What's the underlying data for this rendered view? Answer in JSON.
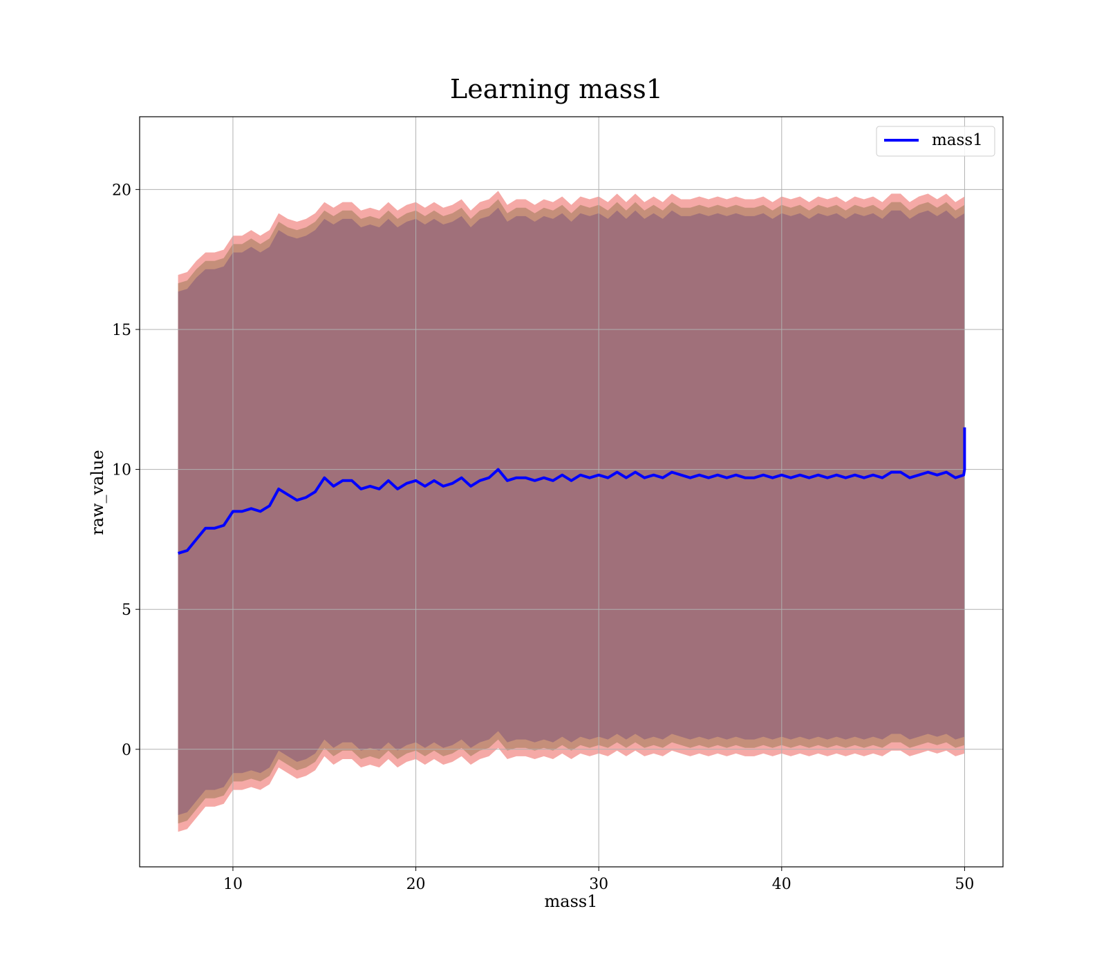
{
  "chart_data": {
    "type": "line",
    "title": "Learning mass1",
    "xlabel": "mass1",
    "ylabel": "raw_value",
    "xlim": [
      4.9,
      52.1
    ],
    "ylim": [
      -4.2,
      22.6
    ],
    "xticks": [
      10,
      20,
      30,
      40,
      50
    ],
    "yticks": [
      0,
      5,
      10,
      15,
      20
    ],
    "grid": true,
    "legend": {
      "position": "top-right",
      "entries": [
        "mass1"
      ]
    },
    "colors": {
      "line": "#0000ff",
      "band_outer": "#f4a09c",
      "band_mid": "#c58f7a",
      "band_inner": "#a0707a",
      "grid": "#b0b0b0"
    },
    "series": [
      {
        "name": "mass1",
        "x": [
          7.0,
          7.5,
          8.0,
          8.5,
          9.0,
          9.5,
          10.0,
          10.5,
          11.0,
          11.5,
          12.0,
          12.5,
          13.0,
          13.5,
          14.0,
          14.5,
          15.0,
          15.5,
          16.0,
          16.5,
          17.0,
          17.5,
          18.0,
          18.5,
          19.0,
          19.5,
          20.0,
          20.5,
          21.0,
          21.5,
          22.0,
          22.5,
          23.0,
          23.5,
          24.0,
          24.5,
          25.0,
          25.5,
          26.0,
          26.5,
          27.0,
          27.5,
          28.0,
          28.5,
          29.0,
          29.5,
          30.0,
          30.5,
          31.0,
          31.5,
          32.0,
          32.5,
          33.0,
          33.5,
          34.0,
          34.5,
          35.0,
          35.5,
          36.0,
          36.5,
          37.0,
          37.5,
          38.0,
          38.5,
          39.0,
          39.5,
          40.0,
          40.5,
          41.0,
          41.5,
          42.0,
          42.5,
          43.0,
          43.5,
          44.0,
          44.5,
          45.0,
          45.5,
          46.0,
          46.5,
          47.0,
          47.5,
          48.0,
          48.5,
          49.0,
          49.5,
          49.95,
          50.0,
          50.0
        ],
        "y": [
          7.0,
          7.1,
          7.5,
          7.9,
          7.9,
          8.0,
          8.5,
          8.5,
          8.6,
          8.5,
          8.7,
          9.3,
          9.1,
          8.9,
          9.0,
          9.2,
          9.7,
          9.4,
          9.6,
          9.6,
          9.3,
          9.4,
          9.3,
          9.6,
          9.3,
          9.5,
          9.6,
          9.4,
          9.6,
          9.4,
          9.5,
          9.7,
          9.4,
          9.6,
          9.7,
          10.0,
          9.6,
          9.7,
          9.7,
          9.6,
          9.7,
          9.6,
          9.8,
          9.6,
          9.8,
          9.7,
          9.8,
          9.7,
          9.9,
          9.7,
          9.9,
          9.7,
          9.8,
          9.7,
          9.9,
          9.8,
          9.7,
          9.8,
          9.7,
          9.8,
          9.7,
          9.8,
          9.7,
          9.7,
          9.8,
          9.7,
          9.8,
          9.7,
          9.8,
          9.7,
          9.8,
          9.7,
          9.8,
          9.7,
          9.8,
          9.7,
          9.8,
          9.7,
          9.9,
          9.9,
          9.7,
          9.8,
          9.9,
          9.8,
          9.9,
          9.7,
          9.8,
          10.0,
          11.5
        ]
      }
    ],
    "band": {
      "x": [
        7.0,
        7.5,
        8.0,
        8.5,
        9.0,
        9.5,
        10.0,
        10.5,
        11.0,
        11.5,
        12.0,
        12.5,
        13.0,
        13.5,
        14.0,
        14.5,
        15.0,
        15.5,
        16.0,
        16.5,
        17.0,
        17.5,
        18.0,
        18.5,
        19.0,
        19.5,
        20.0,
        20.5,
        21.0,
        21.5,
        22.0,
        22.5,
        23.0,
        23.5,
        24.0,
        24.5,
        25.0,
        25.5,
        26.0,
        26.5,
        27.0,
        27.5,
        28.0,
        28.5,
        29.0,
        29.5,
        30.0,
        30.5,
        31.0,
        31.5,
        32.0,
        32.5,
        33.0,
        33.5,
        34.0,
        34.5,
        35.0,
        35.5,
        36.0,
        36.5,
        37.0,
        37.5,
        38.0,
        38.5,
        39.0,
        39.5,
        40.0,
        40.5,
        41.0,
        41.5,
        42.0,
        42.5,
        43.0,
        43.5,
        44.0,
        44.5,
        45.0,
        45.5,
        46.0,
        46.5,
        47.0,
        47.5,
        48.0,
        48.5,
        49.0,
        49.5,
        50.0
      ],
      "upper": [
        16.8,
        16.9,
        17.3,
        17.6,
        17.6,
        17.7,
        18.2,
        18.2,
        18.4,
        18.2,
        18.4,
        19.0,
        18.8,
        18.7,
        18.8,
        19.0,
        19.4,
        19.2,
        19.4,
        19.4,
        19.1,
        19.2,
        19.1,
        19.4,
        19.1,
        19.3,
        19.4,
        19.2,
        19.4,
        19.2,
        19.3,
        19.5,
        19.1,
        19.4,
        19.5,
        19.8,
        19.3,
        19.5,
        19.5,
        19.3,
        19.5,
        19.4,
        19.6,
        19.3,
        19.6,
        19.5,
        19.6,
        19.4,
        19.7,
        19.4,
        19.7,
        19.4,
        19.6,
        19.4,
        19.7,
        19.5,
        19.5,
        19.6,
        19.5,
        19.6,
        19.5,
        19.6,
        19.5,
        19.5,
        19.6,
        19.4,
        19.6,
        19.5,
        19.6,
        19.4,
        19.6,
        19.5,
        19.6,
        19.4,
        19.6,
        19.5,
        19.6,
        19.4,
        19.7,
        19.7,
        19.4,
        19.6,
        19.7,
        19.5,
        19.7,
        19.4,
        19.6
      ],
      "lower": [
        -2.8,
        -2.7,
        -2.3,
        -1.9,
        -1.9,
        -1.8,
        -1.3,
        -1.3,
        -1.2,
        -1.3,
        -1.1,
        -0.5,
        -0.7,
        -0.9,
        -0.8,
        -0.6,
        -0.1,
        -0.4,
        -0.2,
        -0.2,
        -0.5,
        -0.4,
        -0.5,
        -0.2,
        -0.5,
        -0.3,
        -0.2,
        -0.4,
        -0.2,
        -0.4,
        -0.3,
        -0.1,
        -0.4,
        -0.2,
        -0.1,
        0.2,
        -0.2,
        -0.1,
        -0.1,
        -0.2,
        -0.1,
        -0.2,
        0.0,
        -0.2,
        0.0,
        -0.1,
        0.0,
        -0.1,
        0.1,
        -0.1,
        0.1,
        -0.1,
        0.0,
        -0.1,
        0.1,
        0.0,
        -0.1,
        0.0,
        -0.1,
        0.0,
        -0.1,
        0.0,
        -0.1,
        -0.1,
        0.0,
        -0.1,
        0.0,
        -0.1,
        0.0,
        -0.1,
        0.0,
        -0.1,
        0.0,
        -0.1,
        0.0,
        -0.1,
        0.0,
        -0.1,
        0.1,
        0.1,
        -0.1,
        0.0,
        0.1,
        0.0,
        0.1,
        -0.1,
        0.0
      ]
    }
  }
}
